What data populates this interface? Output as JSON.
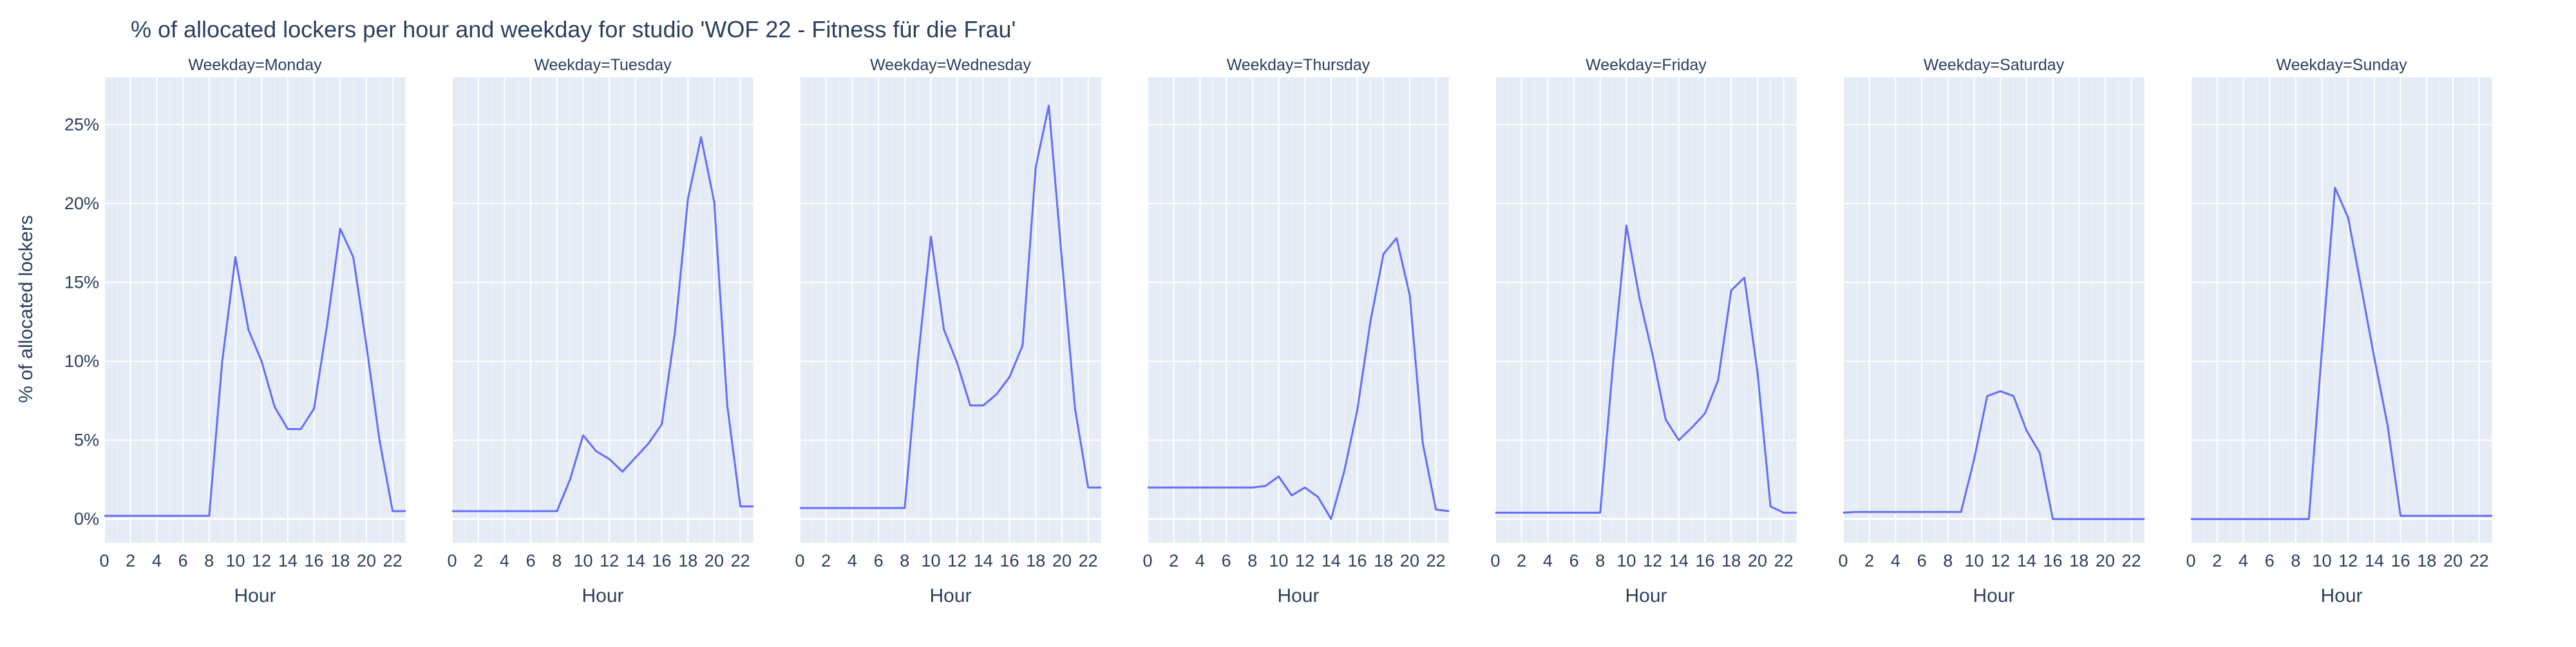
{
  "chart_data": {
    "type": "line",
    "title": "% of allocated lockers per hour and weekday for studio 'WOF 22 - Fitness für die Frau'",
    "xlabel": "Hour",
    "ylabel": "% of allocated lockers",
    "xlim": [
      0,
      23
    ],
    "ylim": [
      -1.5,
      28
    ],
    "xticks": [
      0,
      2,
      4,
      6,
      8,
      10,
      12,
      14,
      16,
      18,
      20,
      22
    ],
    "yticks": [
      0,
      5,
      10,
      15,
      20,
      25
    ],
    "ytick_labels": [
      "0%",
      "5%",
      "10%",
      "15%",
      "20%",
      "25%"
    ],
    "grid": true,
    "line_color": "#636efa",
    "plot_bg": "#e5ecf6",
    "hours": [
      0,
      1,
      2,
      3,
      4,
      5,
      6,
      7,
      8,
      9,
      10,
      11,
      12,
      13,
      14,
      15,
      16,
      17,
      18,
      19,
      20,
      21,
      22,
      23
    ],
    "panels": [
      {
        "title": "Weekday=Monday",
        "values": [
          0.2,
          0.2,
          0.2,
          0.2,
          0.2,
          0.2,
          0.2,
          0.2,
          0.2,
          10.0,
          16.6,
          12.0,
          10.0,
          7.1,
          5.7,
          5.7,
          7.0,
          12.3,
          18.4,
          16.6,
          11.0,
          5.0,
          0.5,
          0.5
        ]
      },
      {
        "title": "Weekday=Tuesday",
        "values": [
          0.5,
          0.5,
          0.5,
          0.5,
          0.5,
          0.5,
          0.5,
          0.5,
          0.5,
          2.5,
          5.3,
          4.3,
          3.8,
          3.0,
          3.9,
          4.8,
          6.0,
          11.8,
          20.3,
          24.2,
          20.1,
          7.2,
          0.8,
          0.8
        ]
      },
      {
        "title": "Weekday=Wednesday",
        "values": [
          0.7,
          0.7,
          0.7,
          0.7,
          0.7,
          0.7,
          0.7,
          0.7,
          0.7,
          10.0,
          17.9,
          12.0,
          9.9,
          7.2,
          7.2,
          7.9,
          9.0,
          11.0,
          22.3,
          26.2,
          16.4,
          7.0,
          2.0,
          2.0
        ]
      },
      {
        "title": "Weekday=Thursday",
        "values": [
          2.0,
          2.0,
          2.0,
          2.0,
          2.0,
          2.0,
          2.0,
          2.0,
          2.0,
          2.1,
          2.7,
          1.5,
          2.0,
          1.4,
          0.0,
          3.0,
          6.9,
          12.5,
          16.8,
          17.8,
          14.2,
          4.8,
          0.6,
          0.5
        ]
      },
      {
        "title": "Weekday=Friday",
        "values": [
          0.4,
          0.4,
          0.4,
          0.4,
          0.4,
          0.4,
          0.4,
          0.4,
          0.4,
          10.0,
          18.6,
          14.0,
          10.4,
          6.3,
          5.0,
          5.8,
          6.7,
          8.8,
          14.5,
          15.3,
          9.3,
          0.8,
          0.4,
          0.4
        ]
      },
      {
        "title": "Weekday=Saturday",
        "values": [
          0.4,
          0.45,
          0.45,
          0.45,
          0.45,
          0.45,
          0.45,
          0.45,
          0.45,
          0.45,
          3.8,
          7.8,
          8.1,
          7.8,
          5.6,
          4.2,
          0.0,
          0.0,
          0.0,
          0.0,
          0.0,
          0.0,
          0.0,
          0.0
        ]
      },
      {
        "title": "Weekday=Sunday",
        "values": [
          0.0,
          0.0,
          0.0,
          0.0,
          0.0,
          0.0,
          0.0,
          0.0,
          0.0,
          0.0,
          10.7,
          21.0,
          19.1,
          14.7,
          10.2,
          6.0,
          0.2,
          0.2,
          0.2,
          0.2,
          0.2,
          0.2,
          0.2,
          0.2
        ]
      }
    ]
  }
}
